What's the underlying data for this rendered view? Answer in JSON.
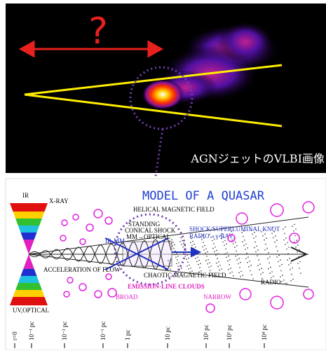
{
  "top_image": {
    "question": "?",
    "caption": "AGNジェットのVLBI画像"
  },
  "model": {
    "title": "MODEL OF A QUASAR",
    "labels": {
      "ir": "IR",
      "xray": "X-RAY",
      "helical": "HELICAL MAGNETIC FIELD",
      "standing": "STANDING",
      "conical": "CONICAL SHOCK",
      "mm_opt": "MM→OPTICAL",
      "irmm": "IR-MM",
      "shock": "SHOCK/SUPERLUMINAL KNOT",
      "radio_gamma": "RADIO→γ-RAY",
      "acceleration": "ACCELERATION OF FLOW",
      "chaotic": "CHAOTIC MAGNETIC FIELD",
      "radio": "RADIO →",
      "emission": "EMISSION-LINE CLOUDS",
      "broad": "BROAD",
      "narrow": "NARROW",
      "uvopt": "UV,OPTICAL"
    },
    "scale": [
      "r=0",
      "10⁻³ pc",
      "10⁻² pc",
      "10⁻¹ pc",
      "1 pc",
      "10 pc",
      "10² pc",
      "10³ pc",
      "10⁴ pc"
    ]
  }
}
